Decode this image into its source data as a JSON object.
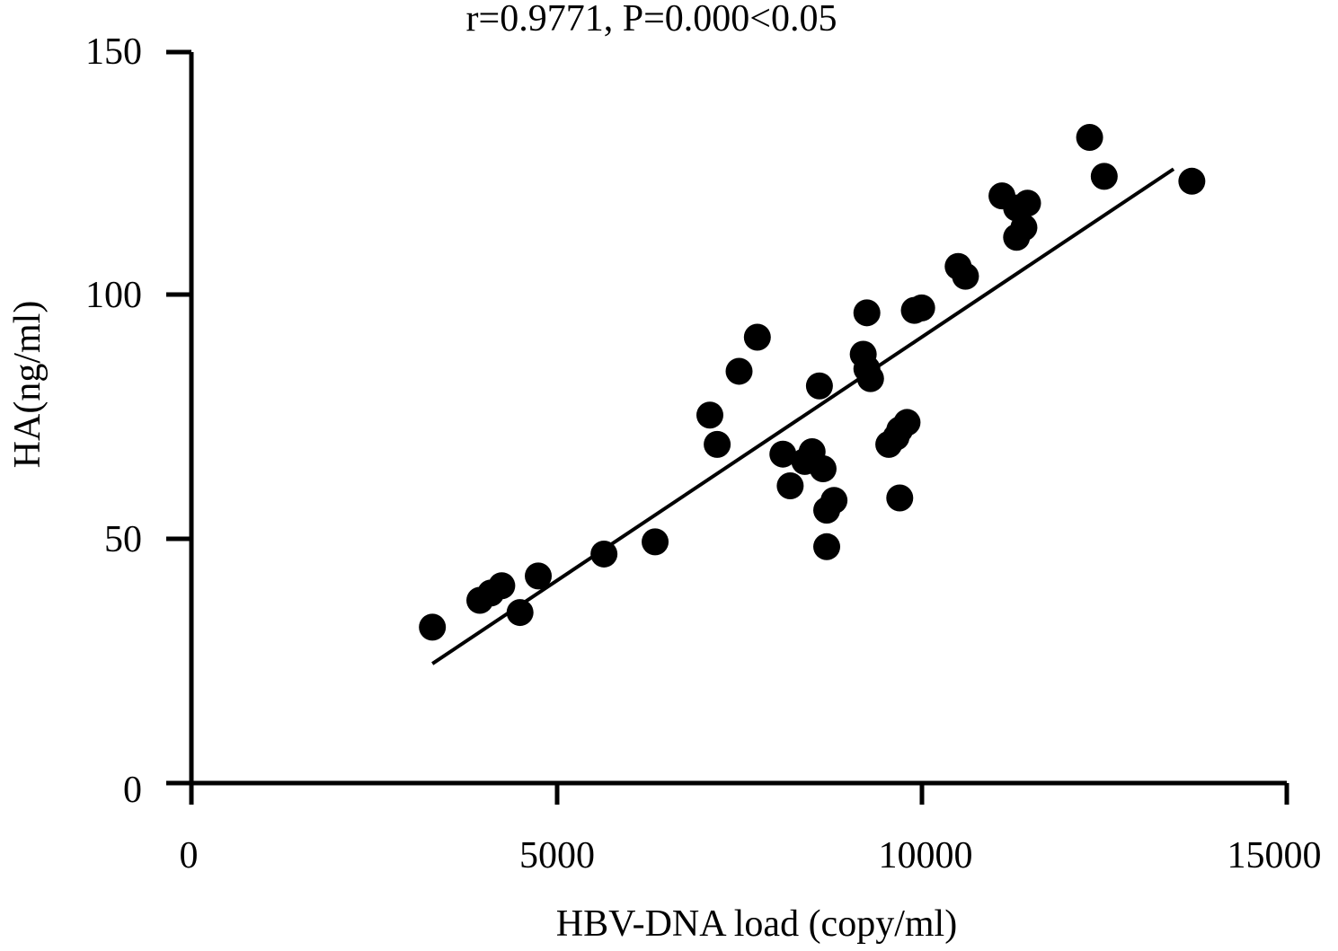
{
  "chart_data": {
    "type": "scatter",
    "title": "r=0.9771, P=0.000<0.05",
    "xlabel": "HBV-DNA load (copy/ml)",
    "ylabel": "HA(ng/ml)",
    "xlim": [
      0,
      15000
    ],
    "ylim": [
      0,
      150
    ],
    "x_ticks": [
      "0",
      "5000",
      "10000",
      "15000"
    ],
    "y_ticks": [
      "0",
      "50",
      "100",
      "150"
    ],
    "grid": false,
    "legend": "none",
    "colors": {
      "marker": "#000000",
      "line": "#000000",
      "axis": "#000000"
    },
    "series": [
      {
        "points": [
          [
            3300,
            32
          ],
          [
            3950,
            37.5
          ],
          [
            4100,
            39
          ],
          [
            4250,
            40.5
          ],
          [
            4500,
            35
          ],
          [
            4750,
            42.5
          ],
          [
            5650,
            47
          ],
          [
            6350,
            49.5
          ],
          [
            7100,
            75.5
          ],
          [
            7200,
            69.5
          ],
          [
            7500,
            84.5
          ],
          [
            7750,
            91.5
          ],
          [
            8100,
            67.5
          ],
          [
            8200,
            61
          ],
          [
            8400,
            66
          ],
          [
            8500,
            68
          ],
          [
            8650,
            64.5
          ],
          [
            8600,
            81.5
          ],
          [
            8700,
            56
          ],
          [
            8800,
            58
          ],
          [
            8700,
            48.5
          ],
          [
            9200,
            88
          ],
          [
            9250,
            85
          ],
          [
            9300,
            83
          ],
          [
            9250,
            96.5
          ],
          [
            9550,
            69.5
          ],
          [
            9650,
            71
          ],
          [
            9700,
            72.5
          ],
          [
            9800,
            74
          ],
          [
            9700,
            58.5
          ],
          [
            9900,
            97
          ],
          [
            10000,
            97.5
          ],
          [
            10500,
            106
          ],
          [
            10600,
            104
          ],
          [
            11100,
            120.5
          ],
          [
            11300,
            118
          ],
          [
            11450,
            119
          ],
          [
            11300,
            112
          ],
          [
            11400,
            114
          ],
          [
            12300,
            132.5
          ],
          [
            12500,
            124.5
          ],
          [
            13700,
            123.5
          ]
        ]
      }
    ],
    "trendline": {
      "x": [
        3300,
        13450
      ],
      "y": [
        24.5,
        126
      ]
    }
  }
}
